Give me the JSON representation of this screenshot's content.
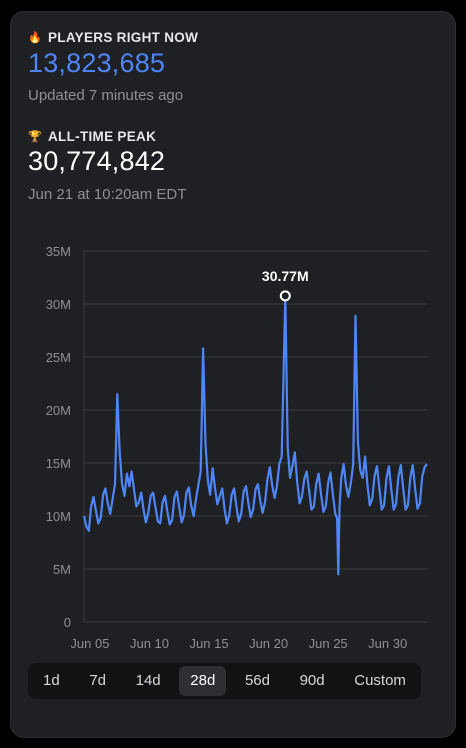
{
  "live": {
    "icon": "fire-icon",
    "label": "PLAYERS RIGHT NOW",
    "value": "13,823,685",
    "updated": "Updated 7 minutes ago",
    "color": "#4f86f7"
  },
  "peak": {
    "icon": "trophy-icon",
    "label": "ALL-TIME PEAK",
    "value": "30,774,842",
    "date": "Jun 21 at 10:20am EDT"
  },
  "chart_data": {
    "type": "line",
    "y_ticks": [
      "0",
      "5M",
      "10M",
      "15M",
      "20M",
      "25M",
      "30M",
      "35M"
    ],
    "x_ticks": [
      "Jun 05",
      "Jun 10",
      "Jun 15",
      "Jun 20",
      "Jun 25",
      "Jun 30"
    ],
    "ylim": [
      0,
      35
    ],
    "y_unit": "M",
    "xlim": [
      4.5,
      33.3
    ],
    "peak_label": "30.77M",
    "peak": {
      "x": 21.4,
      "y": 30.77
    },
    "line_color": "#4f86f7",
    "grid": true,
    "series": [
      {
        "points": [
          [
            4.5,
            10.0
          ],
          [
            4.7,
            9.0
          ],
          [
            4.9,
            8.6
          ],
          [
            5.1,
            10.9
          ],
          [
            5.3,
            11.8
          ],
          [
            5.5,
            10.5
          ],
          [
            5.7,
            9.3
          ],
          [
            5.9,
            9.8
          ],
          [
            6.1,
            12.0
          ],
          [
            6.3,
            12.6
          ],
          [
            6.5,
            11.2
          ],
          [
            6.7,
            10.2
          ],
          [
            6.9,
            11.6
          ],
          [
            7.1,
            13.0
          ],
          [
            7.3,
            21.5
          ],
          [
            7.5,
            16.0
          ],
          [
            7.7,
            13.0
          ],
          [
            7.9,
            11.9
          ],
          [
            8.1,
            14.0
          ],
          [
            8.3,
            12.8
          ],
          [
            8.5,
            14.2
          ],
          [
            8.7,
            12.5
          ],
          [
            8.9,
            10.9
          ],
          [
            9.1,
            11.3
          ],
          [
            9.3,
            12.2
          ],
          [
            9.5,
            10.6
          ],
          [
            9.7,
            9.4
          ],
          [
            9.9,
            10.3
          ],
          [
            10.1,
            11.9
          ],
          [
            10.3,
            12.2
          ],
          [
            10.5,
            10.8
          ],
          [
            10.7,
            9.5
          ],
          [
            10.9,
            9.3
          ],
          [
            11.1,
            11.3
          ],
          [
            11.3,
            11.9
          ],
          [
            11.5,
            10.4
          ],
          [
            11.7,
            9.2
          ],
          [
            11.9,
            9.6
          ],
          [
            12.1,
            11.8
          ],
          [
            12.3,
            12.3
          ],
          [
            12.5,
            10.8
          ],
          [
            12.7,
            9.4
          ],
          [
            12.9,
            10.1
          ],
          [
            13.1,
            12.2
          ],
          [
            13.3,
            12.7
          ],
          [
            13.5,
            11.0
          ],
          [
            13.7,
            10.0
          ],
          [
            13.9,
            11.6
          ],
          [
            14.1,
            12.9
          ],
          [
            14.3,
            14.2
          ],
          [
            14.5,
            25.8
          ],
          [
            14.7,
            16.8
          ],
          [
            14.9,
            13.3
          ],
          [
            15.1,
            12.0
          ],
          [
            15.3,
            14.5
          ],
          [
            15.5,
            12.6
          ],
          [
            15.7,
            11.1
          ],
          [
            15.9,
            11.9
          ],
          [
            16.1,
            12.6
          ],
          [
            16.3,
            10.7
          ],
          [
            16.5,
            9.3
          ],
          [
            16.7,
            10.1
          ],
          [
            16.9,
            12.0
          ],
          [
            17.1,
            12.6
          ],
          [
            17.3,
            10.9
          ],
          [
            17.5,
            9.5
          ],
          [
            17.7,
            10.2
          ],
          [
            17.9,
            12.3
          ],
          [
            18.1,
            12.8
          ],
          [
            18.3,
            11.2
          ],
          [
            18.5,
            9.9
          ],
          [
            18.7,
            10.6
          ],
          [
            18.9,
            12.5
          ],
          [
            19.1,
            13.0
          ],
          [
            19.3,
            11.4
          ],
          [
            19.5,
            10.3
          ],
          [
            19.7,
            11.3
          ],
          [
            19.9,
            13.4
          ],
          [
            20.1,
            14.6
          ],
          [
            20.3,
            12.9
          ],
          [
            20.5,
            11.7
          ],
          [
            20.7,
            12.8
          ],
          [
            20.9,
            14.9
          ],
          [
            21.1,
            15.6
          ],
          [
            21.4,
            30.77
          ],
          [
            21.6,
            16.5
          ],
          [
            21.8,
            13.6
          ],
          [
            22.0,
            14.7
          ],
          [
            22.2,
            16.0
          ],
          [
            22.4,
            13.2
          ],
          [
            22.6,
            11.2
          ],
          [
            22.8,
            11.8
          ],
          [
            23.0,
            13.5
          ],
          [
            23.2,
            14.2
          ],
          [
            23.4,
            12.4
          ],
          [
            23.6,
            10.6
          ],
          [
            23.8,
            10.9
          ],
          [
            24.0,
            13.0
          ],
          [
            24.2,
            14.0
          ],
          [
            24.4,
            12.1
          ],
          [
            24.6,
            10.4
          ],
          [
            24.8,
            10.9
          ],
          [
            25.0,
            13.1
          ],
          [
            25.2,
            14.1
          ],
          [
            25.4,
            12.0
          ],
          [
            25.6,
            10.2
          ],
          [
            25.75,
            9.8
          ],
          [
            25.85,
            4.5
          ],
          [
            25.95,
            10.8
          ],
          [
            26.1,
            13.6
          ],
          [
            26.3,
            14.9
          ],
          [
            26.5,
            12.9
          ],
          [
            26.7,
            11.8
          ],
          [
            26.9,
            13.1
          ],
          [
            27.1,
            14.9
          ],
          [
            27.3,
            28.9
          ],
          [
            27.5,
            17.0
          ],
          [
            27.7,
            14.3
          ],
          [
            27.9,
            13.6
          ],
          [
            28.1,
            15.6
          ],
          [
            28.3,
            12.9
          ],
          [
            28.5,
            11.0
          ],
          [
            28.7,
            11.6
          ],
          [
            28.9,
            13.8
          ],
          [
            29.1,
            14.7
          ],
          [
            29.3,
            12.6
          ],
          [
            29.5,
            10.6
          ],
          [
            29.7,
            11.0
          ],
          [
            29.9,
            13.6
          ],
          [
            30.1,
            14.7
          ],
          [
            30.3,
            12.5
          ],
          [
            30.5,
            10.6
          ],
          [
            30.7,
            11.1
          ],
          [
            30.9,
            13.7
          ],
          [
            31.1,
            14.8
          ],
          [
            31.3,
            12.6
          ],
          [
            31.5,
            10.6
          ],
          [
            31.7,
            11.0
          ],
          [
            31.9,
            13.6
          ],
          [
            32.1,
            14.8
          ],
          [
            32.3,
            12.6
          ],
          [
            32.5,
            10.7
          ],
          [
            32.7,
            11.2
          ],
          [
            32.9,
            13.7
          ],
          [
            33.1,
            14.6
          ],
          [
            33.3,
            14.9
          ]
        ]
      }
    ]
  },
  "ranges": {
    "options": [
      "1d",
      "7d",
      "14d",
      "28d",
      "56d",
      "90d",
      "Custom"
    ],
    "selected": "28d"
  }
}
